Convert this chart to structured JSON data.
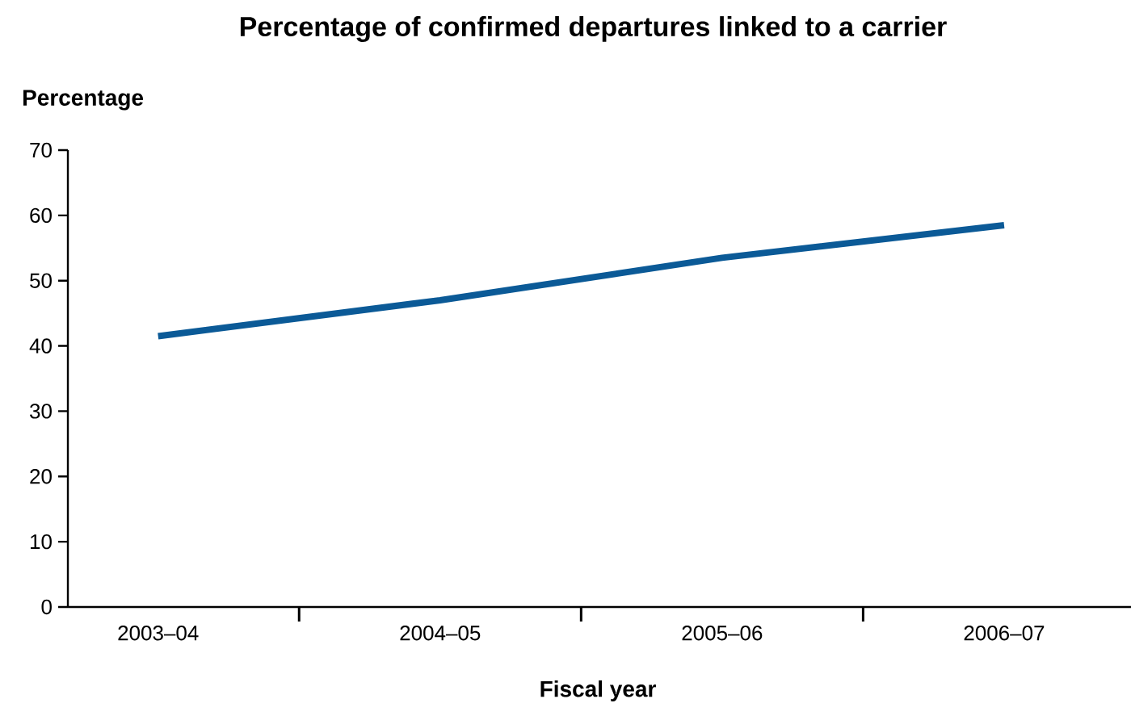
{
  "chart_data": {
    "type": "line",
    "title": "Percentage of confirmed departures linked to a carrier",
    "xlabel": "Fiscal year",
    "ylabel": "Percentage",
    "categories": [
      "2003–04",
      "2004–05",
      "2005–06",
      "2006–07"
    ],
    "values": [
      41.5,
      47,
      53.5,
      58.5
    ],
    "color": "#0b5a97",
    "ylim": [
      0,
      70
    ],
    "yticks": [
      0,
      10,
      20,
      30,
      40,
      50,
      60,
      70
    ]
  }
}
